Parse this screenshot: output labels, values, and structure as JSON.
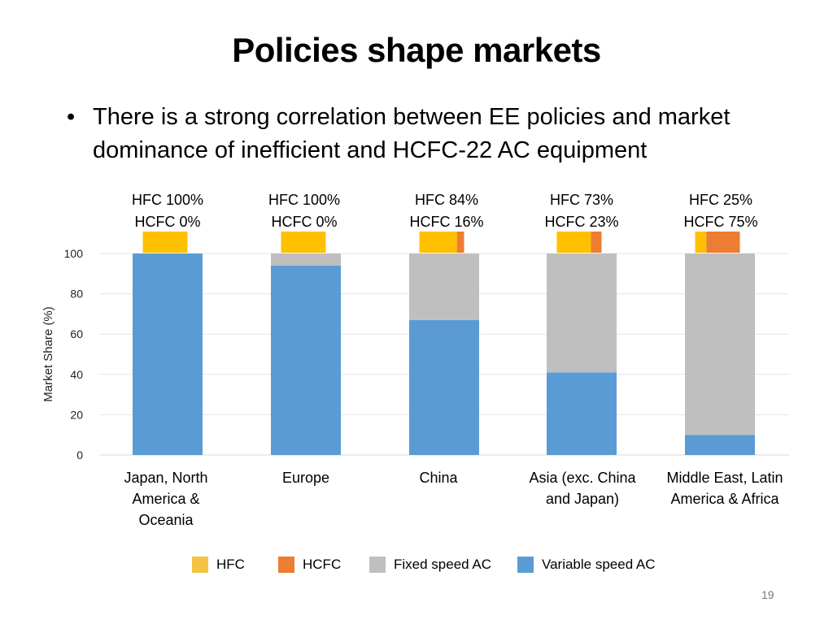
{
  "slide": {
    "title": "Policies shape markets",
    "bullet": "There is a strong correlation between EE policies and market dominance of inefficient and HCFC-22 AC equipment",
    "page_number": "19"
  },
  "colors": {
    "hfc": "#FFC000",
    "hcfc": "#ED7D31",
    "fixed": "#BFBFBF",
    "variable": "#5B9BD5",
    "grid": "#E4E4E4"
  },
  "chart_data": [
    {
      "type": "bar",
      "stacked": true,
      "categories": [
        "Japan, North America & Oceania",
        "Europe",
        "China",
        "Asia (exc. China and Japan)",
        "Middle East, Latin America & Africa"
      ],
      "series": [
        {
          "name": "Variable speed AC",
          "values": [
            100,
            94,
            67,
            41,
            10
          ]
        },
        {
          "name": "Fixed speed AC",
          "values": [
            0,
            6,
            33,
            59,
            90
          ]
        }
      ],
      "ylabel": "Market Share (%)",
      "ylim": [
        0,
        100
      ],
      "yticks": [
        0,
        20,
        40,
        60,
        80,
        100
      ],
      "grid": true
    },
    {
      "type": "bar",
      "stacked": true,
      "orientation": "horizontal",
      "categories": [
        "Japan, North America & Oceania",
        "Europe",
        "China",
        "Asia (exc. China and Japan)",
        "Middle East, Latin America & Africa"
      ],
      "series": [
        {
          "name": "HFC",
          "values": [
            100,
            100,
            84,
            73,
            25
          ]
        },
        {
          "name": "HCFC",
          "values": [
            0,
            0,
            16,
            23,
            75
          ]
        }
      ],
      "labels": [
        {
          "hfc": "HFC 100%",
          "hcfc": "HCFC 0%"
        },
        {
          "hfc": "HFC 100%",
          "hcfc": "HCFC 0%"
        },
        {
          "hfc": "HFC 84%",
          "hcfc": "HCFC 16%"
        },
        {
          "hfc": "HFC 73%",
          "hcfc": "HCFC 23%"
        },
        {
          "hfc": "HFC 25%",
          "hcfc": "HCFC 75%"
        }
      ]
    }
  ],
  "region_labels": [
    [
      "Japan, North",
      "America &",
      "Oceania"
    ],
    [
      "Europe"
    ],
    [
      "China"
    ],
    [
      "Asia (exc. China",
      "and Japan)"
    ],
    [
      "Middle East, Latin",
      "America & Africa"
    ]
  ],
  "legend": [
    {
      "label": "HFC",
      "color": "#FFC000"
    },
    {
      "label": "HCFC",
      "color": "#ED7D31"
    },
    {
      "label": "Fixed speed AC",
      "color": "#BFBFBF"
    },
    {
      "label": "Variable speed AC",
      "color": "#5B9BD5"
    }
  ]
}
